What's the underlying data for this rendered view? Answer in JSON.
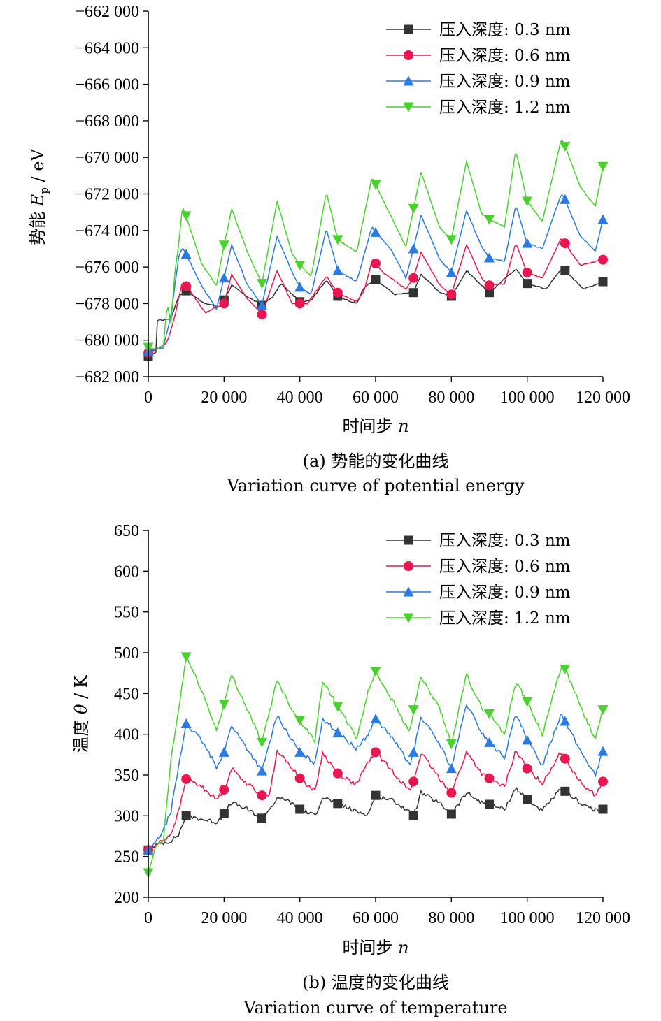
{
  "chart_data": [
    {
      "type": "line",
      "ylabel": "势能 E_p / eV",
      "ylabel_main": "势能 ",
      "ylabel_var": "E",
      "ylabel_sub": "p",
      "ylabel_unit": " / eV",
      "xlabel": "时间步 n",
      "xlabel_main": "时间步 ",
      "xlabel_var": "n",
      "caption_cn": "(a) 势能的变化曲线",
      "caption_en": "Variation curve of potential energy",
      "xlim": [
        0,
        120000
      ],
      "ylim": [
        -682000,
        -662000
      ],
      "xticks": [
        0,
        20000,
        40000,
        60000,
        80000,
        100000,
        120000
      ],
      "xtick_labels": [
        "0",
        "20 000",
        "40 000",
        "60 000",
        "80 000",
        "100 000",
        "120 000"
      ],
      "yticks": [
        -682000,
        -680000,
        -678000,
        -676000,
        -674000,
        -672000,
        -670000,
        -668000,
        -666000,
        -664000,
        -662000
      ],
      "ytick_labels": [
        "−682 000",
        "−680 000",
        "−678 000",
        "−676 000",
        "−674 000",
        "−672 000",
        "−670 000",
        "−668 000",
        "−666 000",
        "−664 000",
        "−662 000"
      ],
      "legend_position": "top-right",
      "grid": false,
      "series": [
        {
          "name": "压入深度: 0.3 nm",
          "color": "#333333",
          "marker": "square",
          "x": [
            0,
            2000,
            2100,
            4000,
            6000,
            8000,
            10000,
            15000,
            19000,
            22000,
            26000,
            30000,
            33000,
            35000,
            40000,
            43000,
            47000,
            50000,
            55000,
            57000,
            60000,
            65000,
            70000,
            72000,
            77000,
            80000,
            84000,
            90000,
            97000,
            100000,
            105000,
            109000,
            110000,
            115000,
            120000
          ],
          "y": [
            -680900,
            -680700,
            -678900,
            -678900,
            -678800,
            -677600,
            -677300,
            -678000,
            -678200,
            -677000,
            -677600,
            -678100,
            -677600,
            -676900,
            -677900,
            -677800,
            -676700,
            -677600,
            -678000,
            -677100,
            -676700,
            -677500,
            -677400,
            -676400,
            -677400,
            -677600,
            -676200,
            -677400,
            -676100,
            -676900,
            -677200,
            -676100,
            -676200,
            -677200,
            -676800
          ]
        },
        {
          "name": "压入深度: 0.6 nm",
          "color": "#e8174f",
          "marker": "circle",
          "x": [
            0,
            3000,
            5000,
            7000,
            9000,
            11000,
            15000,
            20000,
            22000,
            26000,
            30000,
            34000,
            38000,
            42000,
            47000,
            50000,
            55000,
            57000,
            59000,
            60000,
            62000,
            68000,
            70000,
            72000,
            77000,
            80000,
            84000,
            88000,
            90000,
            94000,
            97000,
            100000,
            104000,
            109000,
            110000,
            114000,
            120000
          ],
          "y": [
            -680700,
            -680400,
            -680100,
            -678700,
            -676800,
            -677300,
            -678500,
            -678000,
            -676400,
            -677700,
            -678600,
            -676200,
            -678000,
            -678000,
            -676500,
            -677400,
            -677900,
            -677300,
            -675700,
            -675800,
            -676300,
            -677200,
            -676600,
            -675200,
            -677000,
            -677500,
            -674800,
            -676600,
            -677000,
            -676900,
            -674700,
            -676300,
            -676600,
            -674400,
            -674700,
            -675900,
            -675600
          ]
        },
        {
          "name": "压入深度: 0.9 nm",
          "color": "#2a7ae2",
          "marker": "triangle-up",
          "x": [
            0,
            2000,
            4000,
            6000,
            8000,
            9000,
            10000,
            14000,
            18000,
            20000,
            22000,
            26000,
            30000,
            34000,
            38000,
            40000,
            43000,
            47000,
            50000,
            55000,
            59000,
            60000,
            64000,
            68000,
            70000,
            72000,
            77000,
            80000,
            84000,
            88000,
            90000,
            94000,
            97000,
            100000,
            104000,
            109000,
            110000,
            114000,
            118000,
            120000
          ],
          "y": [
            -680600,
            -680500,
            -680400,
            -678600,
            -675500,
            -674900,
            -675300,
            -677000,
            -678300,
            -676600,
            -674800,
            -676900,
            -678100,
            -674300,
            -676300,
            -677100,
            -677500,
            -673900,
            -676200,
            -676800,
            -673800,
            -674100,
            -675000,
            -676600,
            -675000,
            -673200,
            -675600,
            -676300,
            -672900,
            -674900,
            -675500,
            -675700,
            -672600,
            -674700,
            -675000,
            -672000,
            -672300,
            -674300,
            -675100,
            -673400
          ]
        },
        {
          "name": "压入深度: 1.2 nm",
          "color": "#49d12e",
          "marker": "triangle-down",
          "x": [
            0,
            2000,
            4000,
            5000,
            6000,
            7000,
            8000,
            9000,
            10000,
            14000,
            18000,
            20000,
            22000,
            26000,
            30000,
            34000,
            38000,
            40000,
            43000,
            47000,
            50000,
            55000,
            59000,
            60000,
            64000,
            68000,
            70000,
            72000,
            77000,
            80000,
            84000,
            88000,
            90000,
            94000,
            97000,
            100000,
            104000,
            109000,
            110000,
            114000,
            118000,
            120000
          ],
          "y": [
            -680400,
            -680500,
            -680300,
            -678000,
            -679100,
            -676300,
            -674800,
            -672700,
            -673200,
            -675800,
            -677000,
            -674800,
            -672800,
            -675100,
            -676900,
            -672400,
            -675300,
            -675900,
            -676500,
            -671900,
            -674500,
            -675200,
            -671100,
            -671500,
            -673200,
            -674900,
            -672800,
            -670800,
            -673900,
            -674500,
            -670200,
            -673100,
            -673400,
            -673800,
            -669600,
            -672400,
            -673500,
            -669000,
            -669400,
            -671600,
            -672700,
            -670500
          ]
        }
      ]
    },
    {
      "type": "line",
      "ylabel": "温度 θ / K",
      "ylabel_main": "温度 ",
      "ylabel_var": "θ",
      "ylabel_unit": " / K",
      "xlabel": "时间步 n",
      "xlabel_main": "时间步 ",
      "xlabel_var": "n",
      "caption_cn": "(b) 温度的变化曲线",
      "caption_en": "Variation curve of temperature",
      "xlim": [
        0,
        120000
      ],
      "ylim": [
        200,
        650
      ],
      "xticks": [
        0,
        20000,
        40000,
        60000,
        80000,
        100000,
        120000
      ],
      "xtick_labels": [
        "0",
        "20 000",
        "40 000",
        "60 000",
        "80 000",
        "100 000",
        "120 000"
      ],
      "yticks": [
        200,
        250,
        300,
        350,
        400,
        450,
        500,
        550,
        600,
        650
      ],
      "ytick_labels": [
        "200",
        "250",
        "300",
        "350",
        "400",
        "450",
        "500",
        "550",
        "600",
        "650"
      ],
      "legend_position": "top-right",
      "grid": false,
      "series": [
        {
          "name": "压入深度: 0.3 nm",
          "color": "#333333",
          "marker": "square",
          "x": [
            0,
            2000,
            4000,
            6000,
            8000,
            10000,
            14000,
            18000,
            19500,
            22000,
            26000,
            30000,
            34000,
            36000,
            40000,
            44000,
            46000,
            50000,
            55000,
            58000,
            60000,
            65000,
            70000,
            72000,
            77000,
            80000,
            84000,
            88000,
            90000,
            94000,
            97000,
            100000,
            104000,
            109000,
            110000,
            114000,
            118000,
            120000
          ],
          "y": [
            258,
            264,
            267,
            269,
            277,
            300,
            296,
            292,
            300,
            316,
            308,
            297,
            320,
            321,
            308,
            300,
            323,
            315,
            305,
            302,
            325,
            318,
            300,
            328,
            315,
            302,
            328,
            316,
            314,
            308,
            334,
            320,
            306,
            333,
            330,
            316,
            306,
            308
          ]
        },
        {
          "name": "压入深度: 0.6 nm",
          "color": "#e8174f",
          "marker": "circle",
          "x": [
            0,
            2000,
            4000,
            6000,
            8000,
            10000,
            14000,
            18000,
            20000,
            22000,
            26000,
            30000,
            32000,
            34000,
            36000,
            40000,
            44000,
            46000,
            50000,
            55000,
            58000,
            60000,
            65000,
            69000,
            70000,
            72000,
            77000,
            80000,
            84000,
            88000,
            90000,
            94000,
            97000,
            100000,
            104000,
            109000,
            110000,
            114000,
            118000,
            120000
          ],
          "y": [
            258,
            264,
            270,
            278,
            305,
            345,
            336,
            320,
            332,
            358,
            340,
            325,
            327,
            378,
            370,
            346,
            330,
            377,
            352,
            338,
            366,
            378,
            352,
            330,
            342,
            377,
            345,
            328,
            378,
            352,
            346,
            335,
            380,
            358,
            340,
            379,
            370,
            342,
            325,
            342
          ]
        },
        {
          "name": "压入深度: 0.9 nm",
          "color": "#2a7ae2",
          "marker": "triangle-up",
          "x": [
            0,
            2000,
            4000,
            6000,
            8000,
            10000,
            14000,
            18000,
            20000,
            22000,
            26000,
            30000,
            34000,
            38000,
            40000,
            44000,
            46000,
            50000,
            55000,
            58000,
            60000,
            65000,
            69000,
            70000,
            72000,
            77000,
            80000,
            84000,
            88000,
            90000,
            94000,
            97000,
            100000,
            104000,
            109000,
            110000,
            114000,
            118000,
            120000
          ],
          "y": [
            258,
            268,
            282,
            306,
            360,
            413,
            393,
            360,
            378,
            411,
            383,
            355,
            423,
            392,
            378,
            364,
            420,
            402,
            382,
            400,
            419,
            392,
            362,
            378,
            422,
            387,
            358,
            437,
            402,
            390,
            372,
            425,
            393,
            362,
            426,
            416,
            380,
            350,
            379
          ]
        },
        {
          "name": "压入深度: 1.2 nm",
          "color": "#49d12e",
          "marker": "triangle-down",
          "x": [
            0,
            2000,
            4000,
            5000,
            6000,
            8000,
            10000,
            14000,
            18000,
            20000,
            22000,
            26000,
            30000,
            34000,
            38000,
            40000,
            44000,
            46000,
            50000,
            55000,
            58000,
            60000,
            65000,
            69000,
            70000,
            72000,
            77000,
            80000,
            84000,
            88000,
            90000,
            94000,
            97000,
            100000,
            104000,
            109000,
            110000,
            114000,
            118000,
            120000
          ],
          "y": [
            230,
            262,
            270,
            320,
            370,
            430,
            495,
            455,
            405,
            437,
            473,
            432,
            390,
            467,
            430,
            417,
            392,
            466,
            434,
            395,
            452,
            477,
            437,
            402,
            430,
            470,
            430,
            388,
            473,
            432,
            425,
            400,
            465,
            440,
            400,
            483,
            480,
            435,
            393,
            430
          ]
        }
      ]
    }
  ]
}
